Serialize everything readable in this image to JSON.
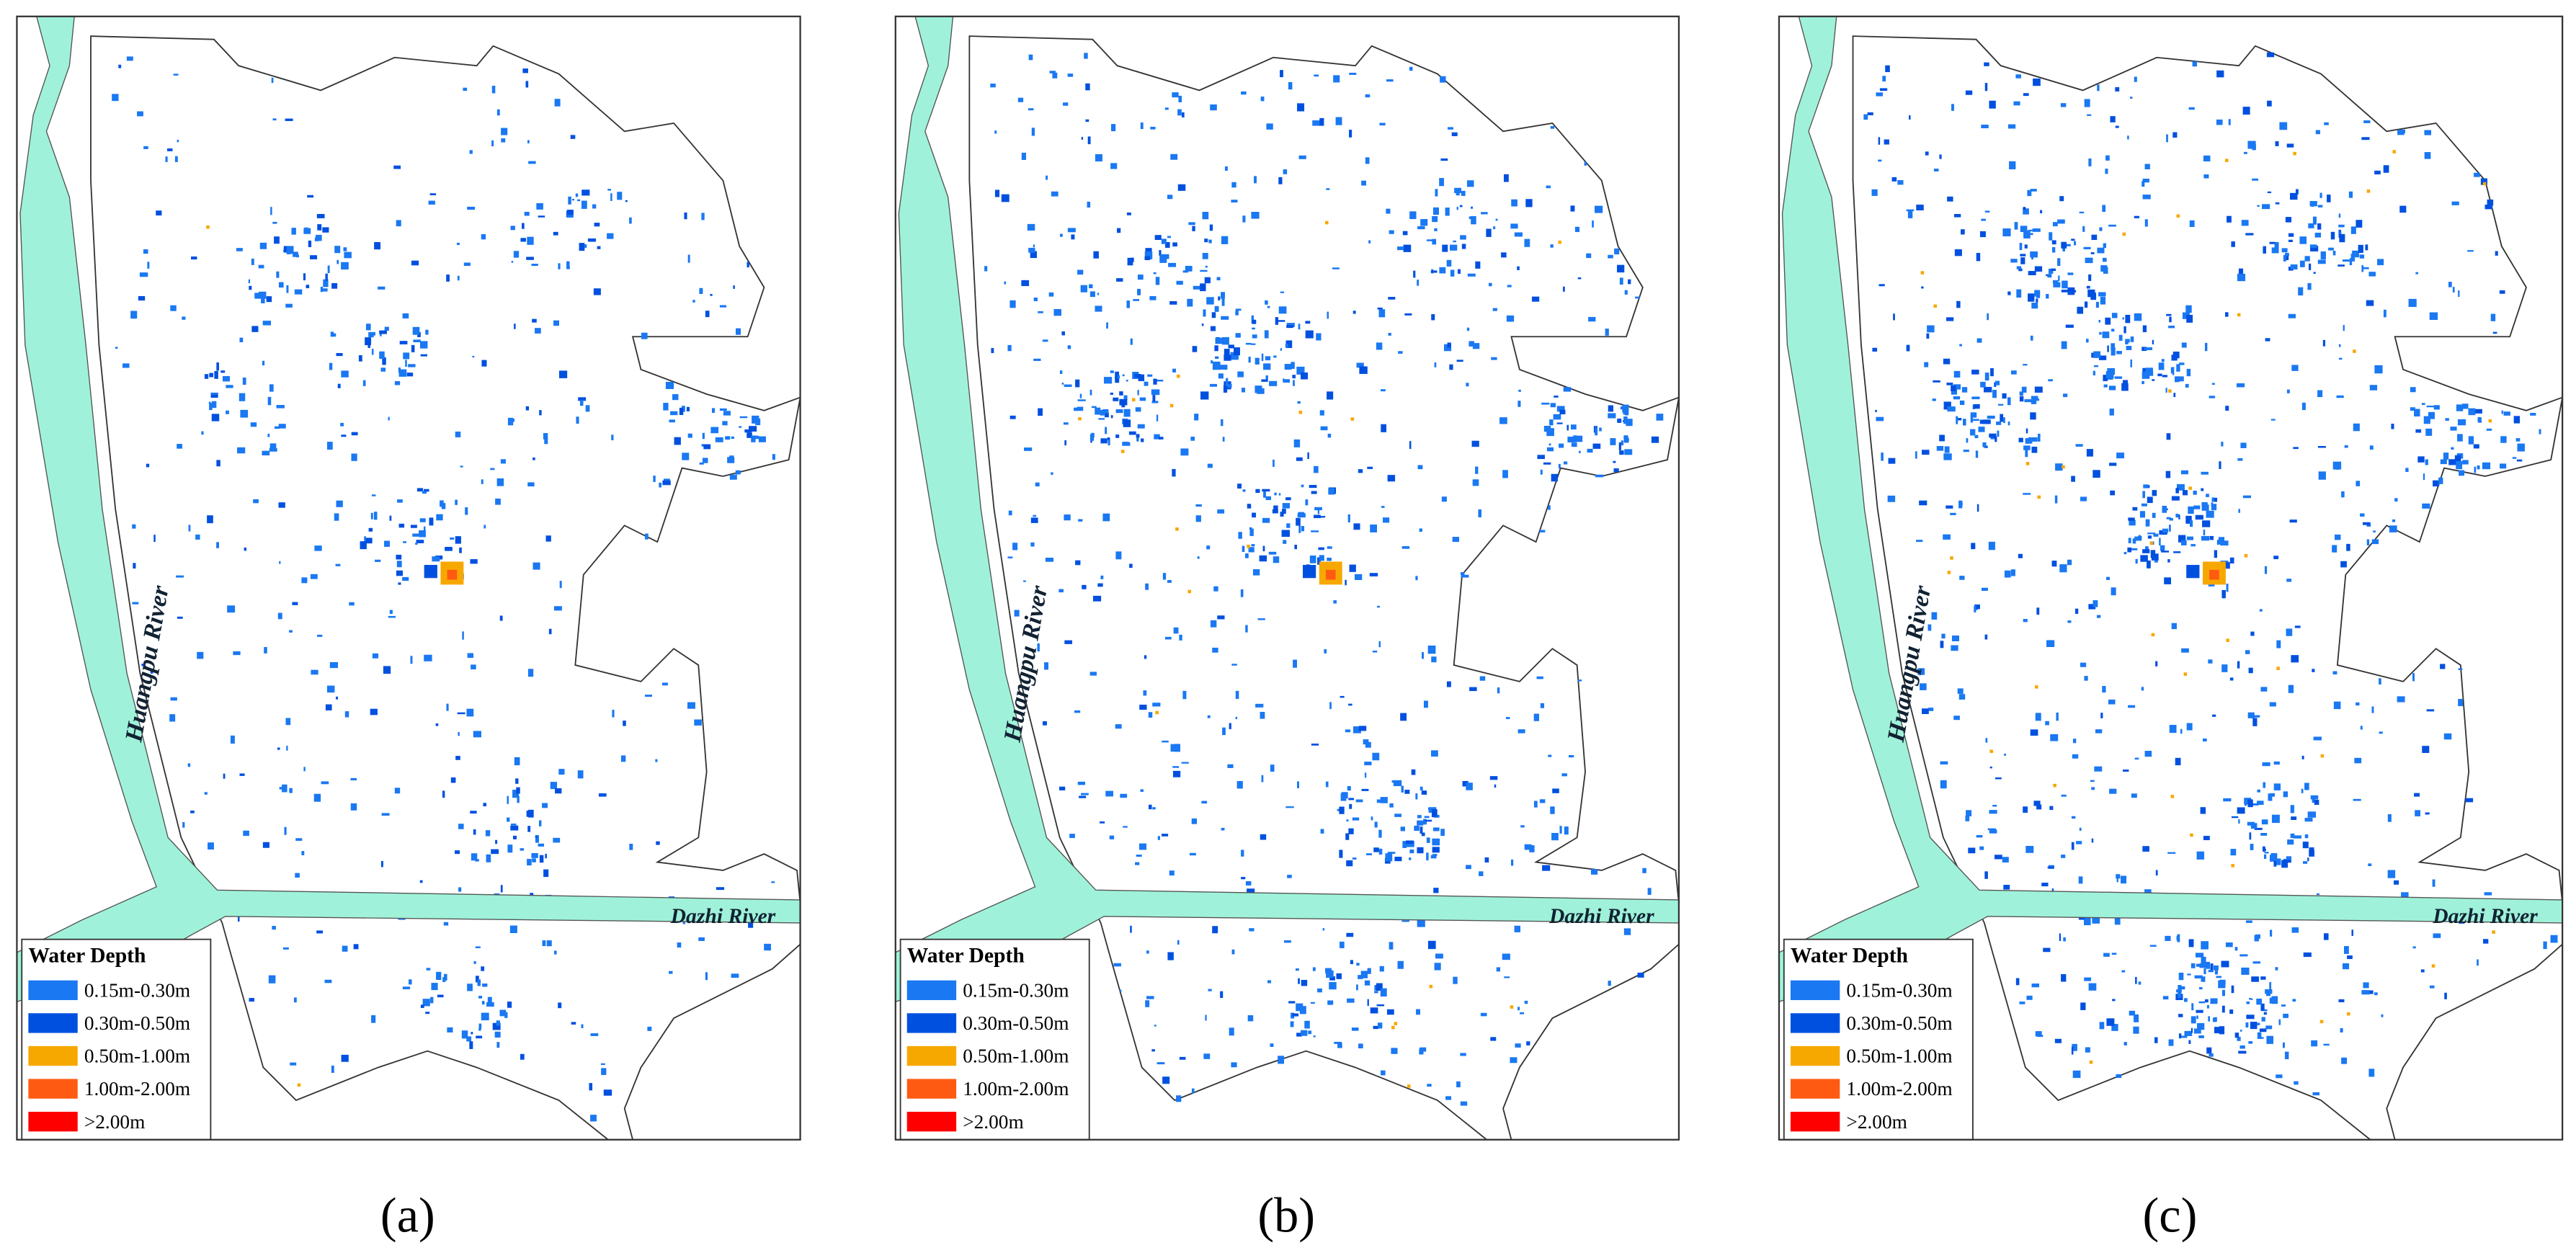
{
  "panels": [
    {
      "label": "(a)"
    },
    {
      "label": "(b)"
    },
    {
      "label": "(c)"
    }
  ],
  "rivers": {
    "huangpu": "Huangpu River",
    "dazhi": "Dazhi River"
  },
  "legend": {
    "title": "Water Depth",
    "items": [
      {
        "label": "0.15m-0.30m",
        "color": "#1a78f2"
      },
      {
        "label": "0.30m-0.50m",
        "color": "#0050e0"
      },
      {
        "label": "0.50m-1.00m",
        "color": "#f7a800"
      },
      {
        "label": "1.00m-2.00m",
        "color": "#ff5a12"
      },
      {
        "label": ">2.00m",
        "color": "#ff0000"
      }
    ]
  }
}
